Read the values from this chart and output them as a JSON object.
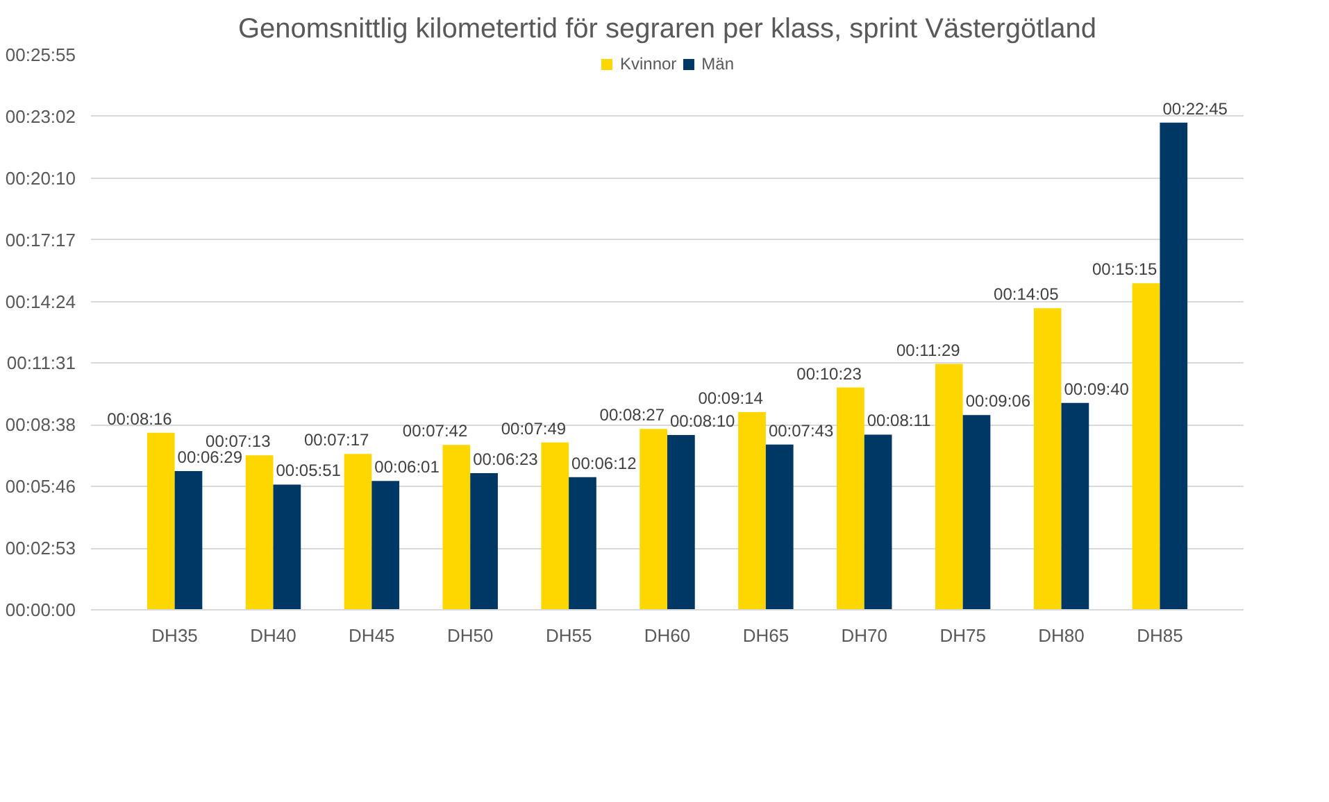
{
  "chart_data": {
    "type": "bar",
    "title": "Genomsnittlig kilometertid för segraren per klass, sprint Västergötland",
    "categories": [
      "DH35",
      "DH40",
      "DH45",
      "DH50",
      "DH55",
      "DH60",
      "DH65",
      "DH70",
      "DH75",
      "DH80",
      "DH85"
    ],
    "series": [
      {
        "name": "Kvinnor",
        "color": "#ffd700",
        "values": [
          496,
          433,
          437,
          462,
          469,
          507,
          554,
          623,
          689,
          845,
          915
        ],
        "value_labels": [
          "00:08:16",
          "00:07:13",
          "00:07:17",
          "00:07:42",
          "00:07:49",
          "00:08:27",
          "00:09:14",
          "00:10:23",
          "00:11:29",
          "00:14:05",
          "00:15:15"
        ]
      },
      {
        "name": "Män",
        "color": "#003865",
        "values": [
          389,
          351,
          361,
          383,
          372,
          490,
          463,
          491,
          546,
          580,
          1365
        ],
        "value_labels": [
          "00:06:29",
          "00:05:51",
          "00:06:01",
          "00:06:23",
          "00:06:12",
          "00:08:10",
          "00:07:43",
          "00:08:11",
          "00:09:06",
          "00:09:40",
          "00:22:45"
        ]
      }
    ],
    "ylim": [
      0,
      1555.2
    ],
    "yticks": [
      {
        "value": 0,
        "label": "00:00:00"
      },
      {
        "value": 172.8,
        "label": "00:02:53"
      },
      {
        "value": 345.6,
        "label": "00:05:46"
      },
      {
        "value": 518.4,
        "label": "00:08:38"
      },
      {
        "value": 691.2,
        "label": "00:11:31"
      },
      {
        "value": 864,
        "label": "00:14:24"
      },
      {
        "value": 1036.8,
        "label": "00:17:17"
      },
      {
        "value": 1209.6,
        "label": "00:20:10"
      },
      {
        "value": 1382.4,
        "label": "00:23:02"
      },
      {
        "value": 1555.2,
        "label": "00:25:55"
      }
    ],
    "grid": "y",
    "legend": "top"
  }
}
